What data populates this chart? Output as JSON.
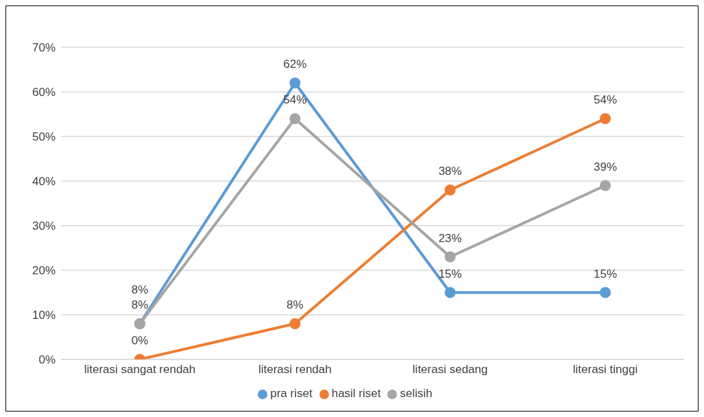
{
  "chart_data": {
    "type": "line",
    "categories": [
      "literasi sangat rendah",
      "literasi rendah",
      "literasi sedang",
      "literasi tinggi"
    ],
    "series": [
      {
        "name": "pra riset",
        "color": "#5b9bd5",
        "values": [
          8,
          62,
          15,
          15
        ],
        "value_labels": [
          "8%",
          "62%",
          "15%",
          "15%"
        ]
      },
      {
        "name": "hasil riset",
        "color": "#ed7d31",
        "values": [
          0,
          8,
          38,
          54
        ],
        "value_labels": [
          "0%",
          "8%",
          "38%",
          "54%"
        ]
      },
      {
        "name": "selisih",
        "color": "#a5a5a5",
        "values": [
          8,
          54,
          23,
          39
        ],
        "value_labels": [
          "8%",
          "54%",
          "23%",
          "39%"
        ]
      }
    ],
    "ylim": [
      0,
      70
    ],
    "yticks": [
      {
        "value": 0,
        "label": "0%"
      },
      {
        "value": 10,
        "label": "10%"
      },
      {
        "value": 20,
        "label": "20%"
      },
      {
        "value": 30,
        "label": "30%"
      },
      {
        "value": 40,
        "label": "40%"
      },
      {
        "value": 50,
        "label": "50%"
      },
      {
        "value": 60,
        "label": "60%"
      },
      {
        "value": 70,
        "label": "70%"
      }
    ],
    "grid": "y",
    "legend": "bottom",
    "marker": "circle"
  }
}
